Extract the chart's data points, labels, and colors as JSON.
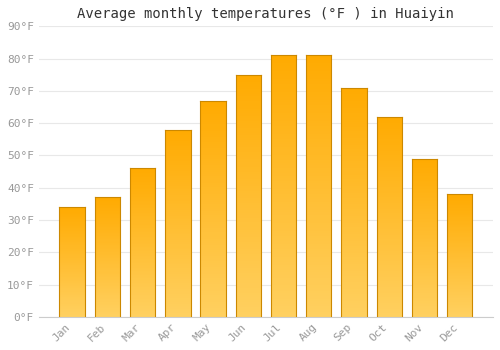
{
  "title": "Average monthly temperatures (°F ) in Huaiyin",
  "months": [
    "Jan",
    "Feb",
    "Mar",
    "Apr",
    "May",
    "Jun",
    "Jul",
    "Aug",
    "Sep",
    "Oct",
    "Nov",
    "Dec"
  ],
  "values": [
    34,
    37,
    46,
    58,
    67,
    75,
    81,
    81,
    71,
    62,
    49,
    38
  ],
  "bar_color_main": "#FFAA00",
  "bar_color_light": "#FFD060",
  "bar_edge_color": "#CC8800",
  "ylim": [
    0,
    90
  ],
  "yticks": [
    0,
    10,
    20,
    30,
    40,
    50,
    60,
    70,
    80,
    90
  ],
  "ylabel_format": "{0}°F",
  "background_color": "#FFFFFF",
  "plot_bg_color": "#FFFFFF",
  "grid_color": "#E8E8E8",
  "tick_label_color": "#999999",
  "title_color": "#333333",
  "title_fontsize": 10,
  "tick_fontsize": 8,
  "bar_width": 0.72
}
